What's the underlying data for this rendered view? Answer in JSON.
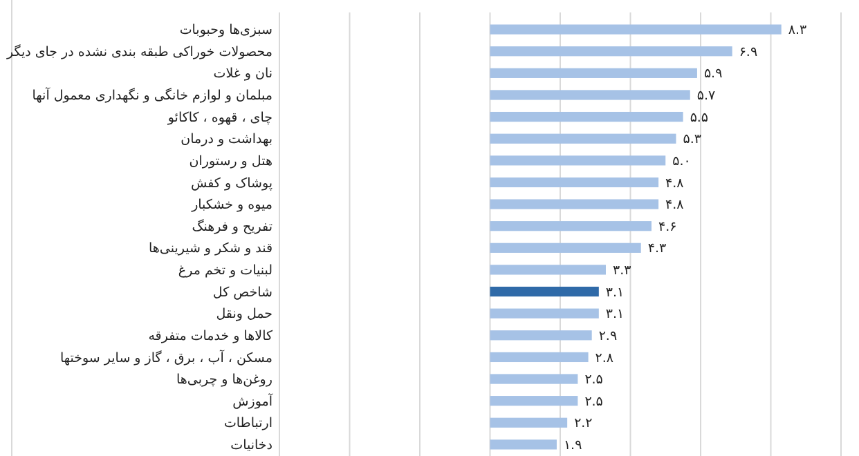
{
  "chart_data": {
    "type": "bar",
    "orientation": "horizontal",
    "categories": [
      "سبزی‌ها وحبوبات",
      "محصولات خوراکی طبقه بندی نشده در جای دیگر",
      "نان و غلات",
      "مبلمان و لوازم خانگی و نگهداری معمول آنها",
      "چای ، قهوه ، کاکائو",
      "بهداشت و درمان",
      "هتل و رستوران",
      "پوشاک و کفش",
      "میوه و خشکبار",
      "تفریح و فرهنگ",
      "قند و شکر و شیرینی‌ها",
      "لبنیات و تخم مرغ",
      "شاخص کل",
      "حمل ونقل",
      "کالاها و خدمات متفرقه",
      "مسکن ، آب ، برق ، گاز و سایر سوختها",
      "روغن‌ها و چربی‌ها",
      "آموزش",
      "ارتباطات",
      "دخانیات"
    ],
    "values": [
      8.3,
      6.9,
      5.9,
      5.7,
      5.5,
      5.3,
      5.0,
      4.8,
      4.8,
      4.6,
      4.3,
      3.3,
      3.1,
      3.1,
      2.9,
      2.8,
      2.5,
      2.5,
      2.2,
      1.9
    ],
    "value_labels": [
      "۸.۳",
      "۶.۹",
      "۵.۹",
      "۵.۷",
      "۵.۵",
      "۵.۳",
      "۵.۰",
      "۴.۸",
      "۴.۸",
      "۴.۶",
      "۴.۳",
      "۳.۳",
      "۳.۱",
      "۳.۱",
      "۲.۹",
      "۲.۸",
      "۲.۵",
      "۲.۵",
      "۲.۲",
      "۱.۹"
    ],
    "colors": [
      "#a6c2e6",
      "#a6c2e6",
      "#a6c2e6",
      "#a6c2e6",
      "#a6c2e6",
      "#a6c2e6",
      "#a6c2e6",
      "#a6c2e6",
      "#a6c2e6",
      "#a6c2e6",
      "#a6c2e6",
      "#a6c2e6",
      "#2f6aa8",
      "#a6c2e6",
      "#a6c2e6",
      "#a6c2e6",
      "#a6c2e6",
      "#a6c2e6",
      "#a6c2e6",
      "#a6c2e6"
    ],
    "xlim": [
      -6,
      10
    ],
    "xticks": [
      {
        "value": -6,
        "label": null
      },
      {
        "value": -4,
        "label": null
      },
      {
        "value": -2,
        "label": null
      },
      {
        "value": 0,
        "label": null
      },
      {
        "value": 2,
        "label": null
      },
      {
        "value": 4,
        "label": null
      },
      {
        "value": 6,
        "label": null
      },
      {
        "value": 8,
        "label": null
      },
      {
        "value": 10,
        "label": null
      }
    ],
    "grid": "x",
    "tick_labels": "y"
  }
}
